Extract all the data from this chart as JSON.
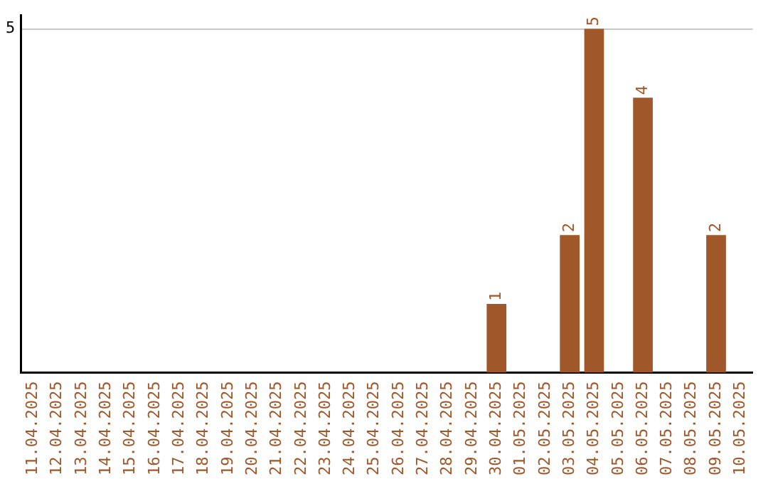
{
  "chart_data": {
    "type": "bar",
    "categories": [
      "11.04.2025",
      "12.04.2025",
      "13.04.2025",
      "14.04.2025",
      "15.04.2025",
      "16.04.2025",
      "17.04.2025",
      "18.04.2025",
      "19.04.2025",
      "20.04.2025",
      "21.04.2025",
      "22.04.2025",
      "23.04.2025",
      "24.04.2025",
      "25.04.2025",
      "26.04.2025",
      "27.04.2025",
      "28.04.2025",
      "29.04.2025",
      "30.04.2025",
      "01.05.2025",
      "02.05.2025",
      "03.05.2025",
      "04.05.2025",
      "05.05.2025",
      "06.05.2025",
      "07.05.2025",
      "08.05.2025",
      "09.05.2025",
      "10.05.2025"
    ],
    "values": [
      null,
      null,
      null,
      null,
      null,
      null,
      null,
      null,
      null,
      null,
      null,
      null,
      null,
      null,
      null,
      null,
      null,
      null,
      null,
      1,
      null,
      null,
      2,
      5,
      null,
      4,
      null,
      null,
      2,
      null
    ],
    "data_labels": true,
    "color": "#a0572a",
    "ylim": [
      0,
      5.2
    ],
    "yticks": [
      5
    ],
    "grid": "y",
    "legend": false
  }
}
